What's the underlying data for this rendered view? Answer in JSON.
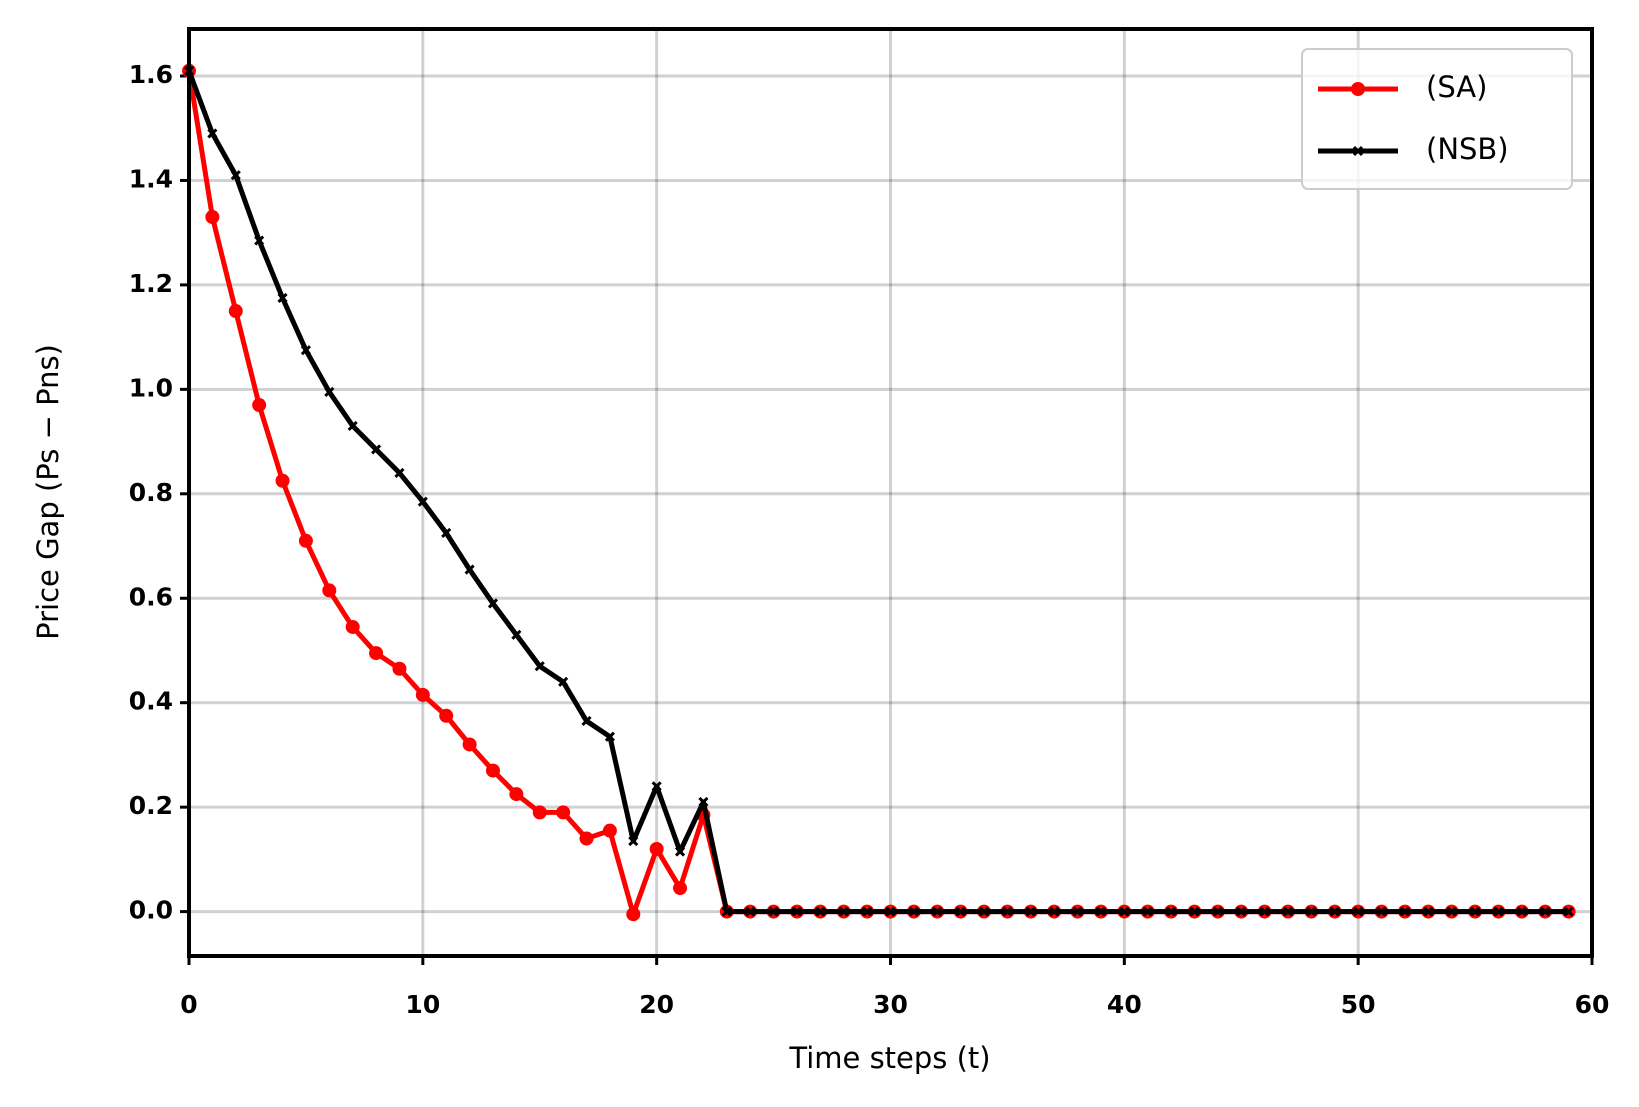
{
  "chart_data": {
    "type": "line",
    "xlabel": "Time steps (t)",
    "ylabel": "Price Gap (Ps − Pns)",
    "x": [
      0,
      1,
      2,
      3,
      4,
      5,
      6,
      7,
      8,
      9,
      10,
      11,
      12,
      13,
      14,
      15,
      16,
      17,
      18,
      19,
      20,
      21,
      22,
      23,
      24,
      25,
      26,
      27,
      28,
      29,
      30,
      31,
      32,
      33,
      34,
      35,
      36,
      37,
      38,
      39,
      40,
      41,
      42,
      43,
      44,
      45,
      46,
      47,
      48,
      49,
      50,
      51,
      52,
      53,
      54,
      55,
      56,
      57,
      58,
      59
    ],
    "series": [
      {
        "name": "(SA)",
        "color": "#ff0000",
        "marker": "circle",
        "values": [
          1.61,
          1.33,
          1.15,
          0.97,
          0.825,
          0.71,
          0.615,
          0.545,
          0.495,
          0.465,
          0.415,
          0.375,
          0.32,
          0.27,
          0.225,
          0.19,
          0.19,
          0.14,
          0.155,
          -0.005,
          0.12,
          0.045,
          0.185,
          0,
          0,
          0,
          0,
          0,
          0,
          0,
          0,
          0,
          0,
          0,
          0,
          0,
          0,
          0,
          0,
          0,
          0,
          0,
          0,
          0,
          0,
          0,
          0,
          0,
          0,
          0,
          0,
          0,
          0,
          0,
          0,
          0,
          0,
          0,
          0,
          0
        ]
      },
      {
        "name": "(NSB)",
        "color": "#000000",
        "marker": "x",
        "values": [
          1.61,
          1.49,
          1.41,
          1.285,
          1.175,
          1.075,
          0.995,
          0.93,
          0.885,
          0.84,
          0.785,
          0.725,
          0.655,
          0.59,
          0.53,
          0.47,
          0.44,
          0.365,
          0.335,
          0.135,
          0.24,
          0.115,
          0.21,
          0,
          0,
          0,
          0,
          0,
          0,
          0,
          0,
          0,
          0,
          0,
          0,
          0,
          0,
          0,
          0,
          0,
          0,
          0,
          0,
          0,
          0,
          0,
          0,
          0,
          0,
          0,
          0,
          0,
          0,
          0,
          0,
          0,
          0,
          0,
          0,
          0
        ]
      }
    ],
    "xlim": [
      0,
      60
    ],
    "xticks": [
      0,
      10,
      20,
      30,
      40,
      50,
      60
    ],
    "ylim": [
      -0.085,
      1.69
    ],
    "yticks": [
      {
        "value": 0,
        "label": "0.0"
      },
      0.2,
      0.4,
      0.6,
      0.8,
      {
        "value": 1,
        "label": "1.0"
      },
      1.2,
      1.4,
      1.6
    ],
    "grid": true,
    "legend": "upper right"
  }
}
